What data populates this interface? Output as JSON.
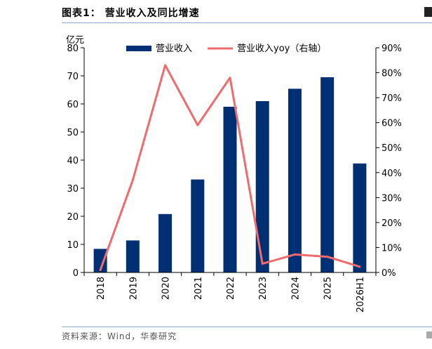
{
  "page": {
    "title": "图表1：  营业收入及同比增速",
    "source": "资料来源：Wind，华泰研究"
  },
  "chart_data": {
    "type": "bar",
    "categories": [
      "2018",
      "2019",
      "2020",
      "2021",
      "2022",
      "2023",
      "2024",
      "2025",
      "2026H1"
    ],
    "unit_label": "亿元",
    "series": [
      {
        "name": "营业收入",
        "type": "bar",
        "axis": "left",
        "color": "#002f73",
        "values": [
          8.4,
          11.4,
          20.8,
          33.1,
          59.0,
          61.0,
          65.4,
          69.5,
          38.8
        ]
      },
      {
        "name": "营业收入yoy（右轴）",
        "type": "line",
        "axis": "right",
        "color": "#ef6b6e",
        "values": [
          1.0,
          37.0,
          83.0,
          59.0,
          78.0,
          3.5,
          7.2,
          6.3,
          2.3
        ]
      }
    ],
    "ylim": [
      0,
      80
    ],
    "yticks": [
      "0",
      "10",
      "20",
      "30",
      "40",
      "50",
      "60",
      "70",
      "80"
    ],
    "y2lim": [
      0,
      90
    ],
    "y2ticks": [
      "0%",
      "10%",
      "20%",
      "30%",
      "40%",
      "50%",
      "60%",
      "70%",
      "80%",
      "90%"
    ],
    "grid": false,
    "legend_position": "top"
  }
}
